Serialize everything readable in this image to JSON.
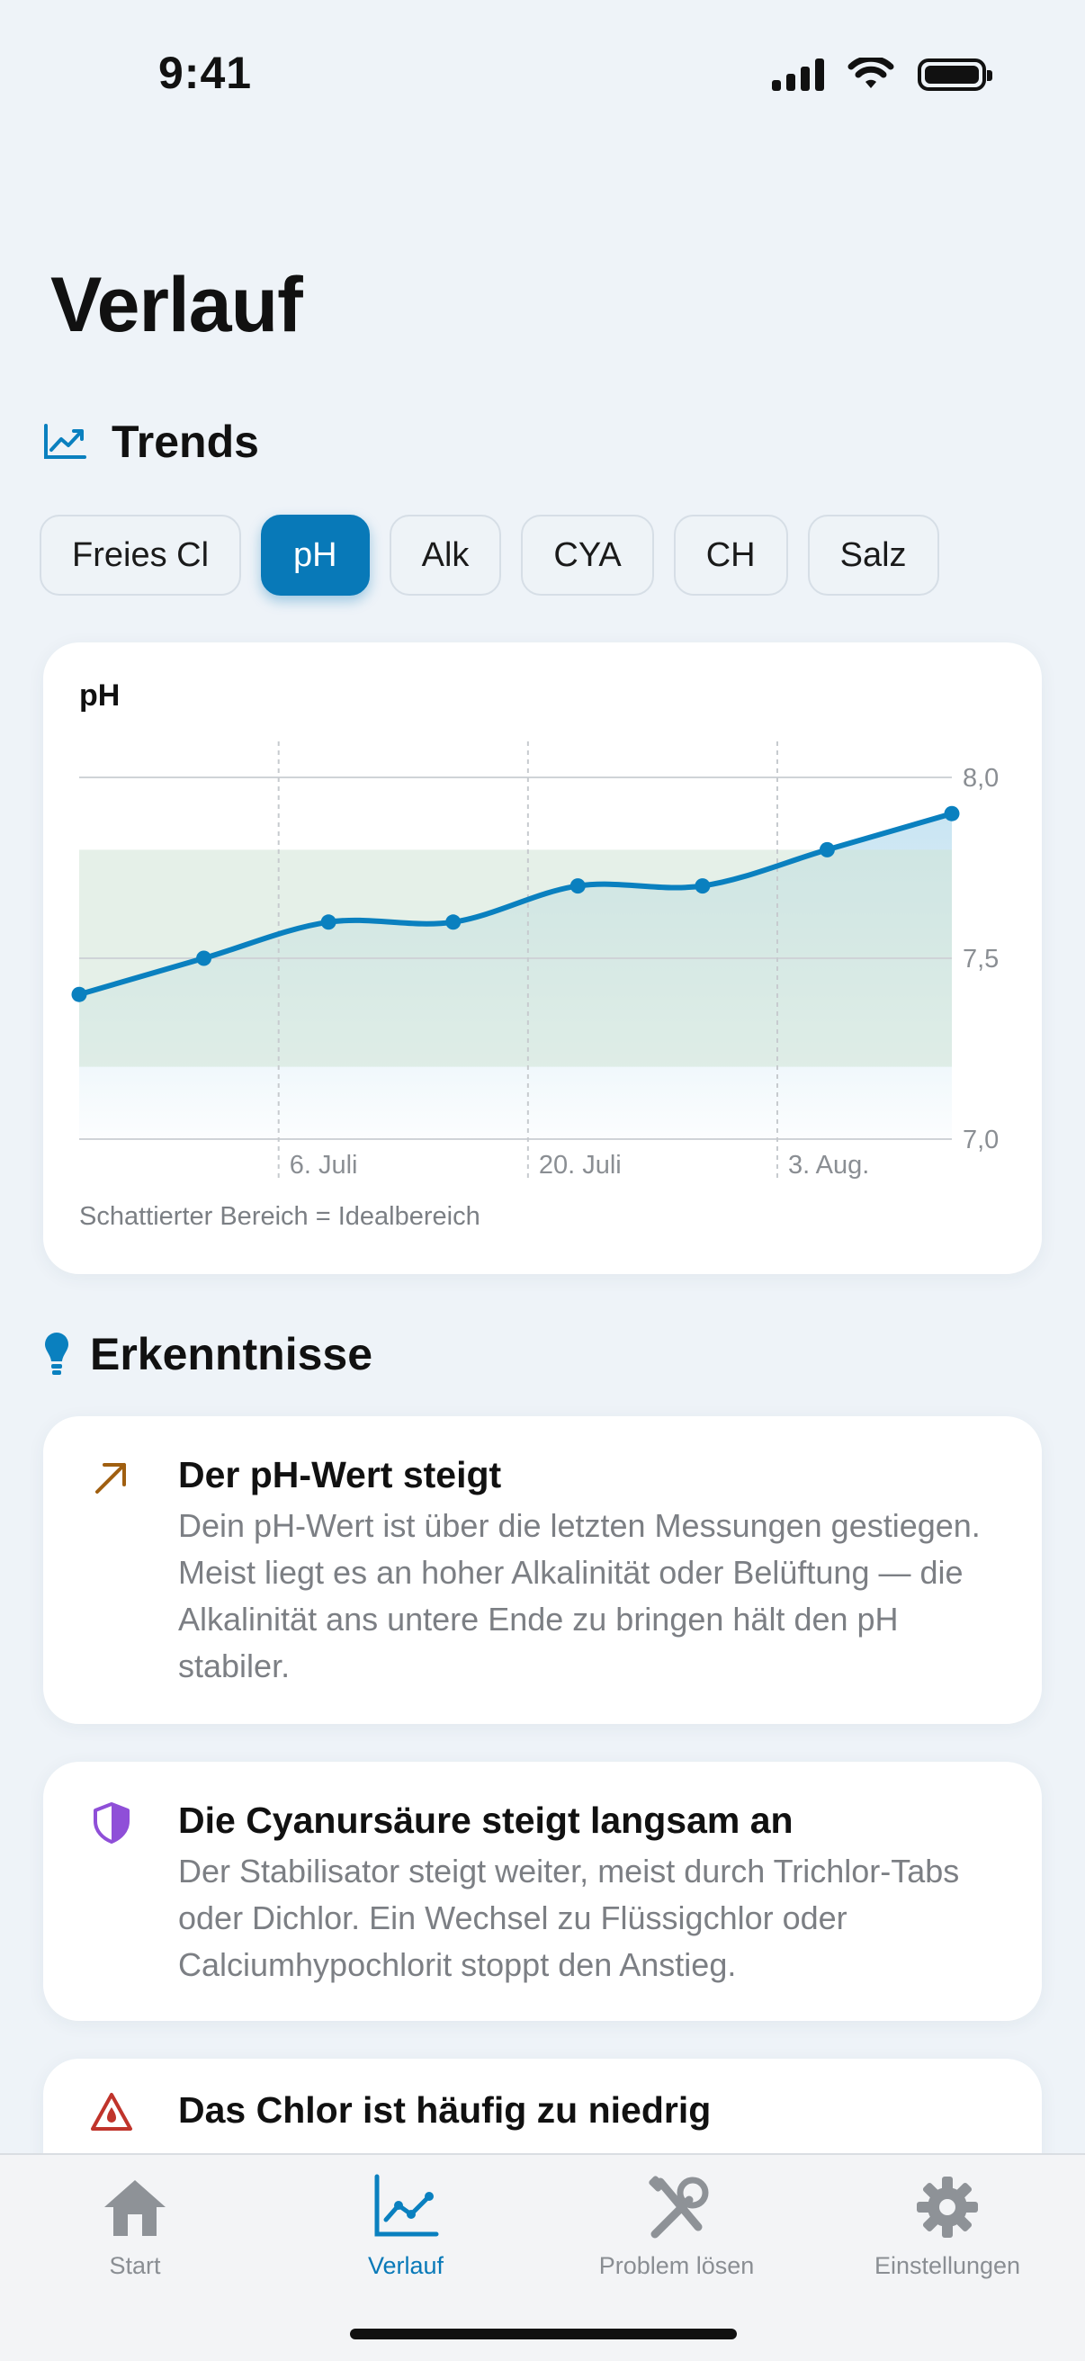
{
  "status_bar": {
    "time": "9:41"
  },
  "page_title": "Verlauf",
  "trends": {
    "title": "Trends",
    "chips": [
      {
        "label": "Freies Cl",
        "active": false
      },
      {
        "label": "pH",
        "active": true
      },
      {
        "label": "Alk",
        "active": false
      },
      {
        "label": "CYA",
        "active": false
      },
      {
        "label": "CH",
        "active": false
      },
      {
        "label": "Salz",
        "active": false
      }
    ]
  },
  "chart": {
    "title": "pH",
    "note": "Schattierter Bereich = Idealbereich",
    "colors": {
      "line": "#0a80bf",
      "ideal_band": "#cfe3d6",
      "area": "#bfe0f0"
    }
  },
  "chart_data": {
    "type": "line",
    "title": "pH",
    "x_tick_labels": [
      "6. Juli",
      "20. Juli",
      "3. Aug."
    ],
    "y_tick_labels": [
      "8,0",
      "7,5",
      "7,0"
    ],
    "ylim": [
      7.0,
      8.0
    ],
    "ideal_range": [
      7.2,
      7.8
    ],
    "series": [
      {
        "values": [
          7.4,
          7.5,
          7.6,
          7.6,
          7.7,
          7.7,
          7.8,
          7.9
        ]
      }
    ],
    "grid": true
  },
  "insights": {
    "title": "Erkenntnisse",
    "items": [
      {
        "icon": "arrow-up-right-icon",
        "title": "Der pH-Wert steigt",
        "body": "Dein pH-Wert ist über die letzten Messungen gestiegen. Meist liegt es an hoher Alkalinität oder Belüftung — die Alkalinität ans untere Ende zu bringen hält den pH stabiler."
      },
      {
        "icon": "shield-icon",
        "title": "Die Cyanursäure steigt langsam an",
        "body": "Der Stabilisator steigt weiter, meist durch Trichlor-Tabs oder Dichlor. Ein Wechsel zu Flüssigchlor oder Calciumhypochlorit stoppt den Anstieg."
      },
      {
        "icon": "warning-drop-icon",
        "title": "Das Chlor ist häufig zu niedrig",
        "body": ""
      }
    ]
  },
  "tabbar": {
    "items": [
      {
        "label": "Start",
        "icon": "house-icon",
        "active": false
      },
      {
        "label": "Verlauf",
        "icon": "chart-icon",
        "active": true
      },
      {
        "label": "Problem lösen",
        "icon": "tools-icon",
        "active": false
      },
      {
        "label": "Einstellungen",
        "icon": "gear-icon",
        "active": false
      }
    ]
  }
}
